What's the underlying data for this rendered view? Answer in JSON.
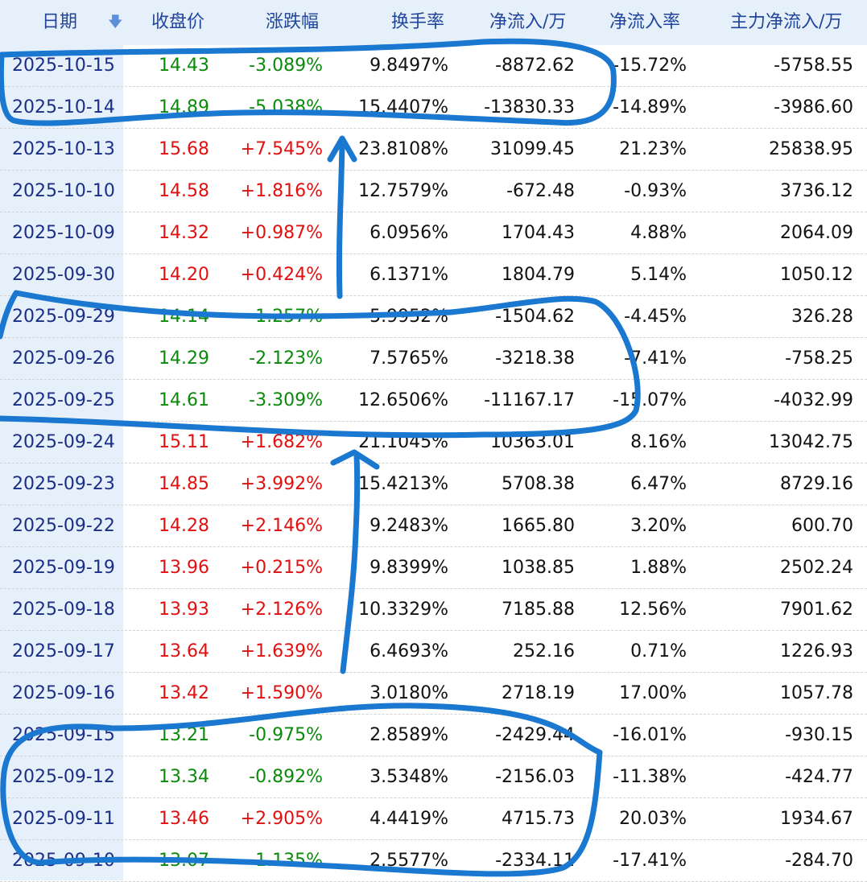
{
  "header": {
    "date": "日期",
    "close": "收盘价",
    "change": "涨跌幅",
    "turnover": "换手率",
    "net_inflow": "净流入/万",
    "net_rate": "净流入率",
    "main_inflow": "主力净流入/万",
    "sort_icon": "arrow-down-icon"
  },
  "colors": {
    "up": "#e01010",
    "down": "#0a8a0a",
    "header_bg": "#e6f0fa",
    "annotation": "#1a78d0"
  },
  "rows": [
    {
      "date": "2025-10-15",
      "close": "14.43",
      "change": "-3.089%",
      "turnover": "9.8497%",
      "net": "-8872.62",
      "rate": "-15.72%",
      "main": "-5758.55",
      "dir": "down"
    },
    {
      "date": "2025-10-14",
      "close": "14.89",
      "change": "-5.038%",
      "turnover": "15.4407%",
      "net": "-13830.33",
      "rate": "-14.89%",
      "main": "-3986.60",
      "dir": "down"
    },
    {
      "date": "2025-10-13",
      "close": "15.68",
      "change": "+7.545%",
      "turnover": "23.8108%",
      "net": "31099.45",
      "rate": "21.23%",
      "main": "25838.95",
      "dir": "up"
    },
    {
      "date": "2025-10-10",
      "close": "14.58",
      "change": "+1.816%",
      "turnover": "12.7579%",
      "net": "-672.48",
      "rate": "-0.93%",
      "main": "3736.12",
      "dir": "up"
    },
    {
      "date": "2025-10-09",
      "close": "14.32",
      "change": "+0.987%",
      "turnover": "6.0956%",
      "net": "1704.43",
      "rate": "4.88%",
      "main": "2064.09",
      "dir": "up"
    },
    {
      "date": "2025-09-30",
      "close": "14.20",
      "change": "+0.424%",
      "turnover": "6.1371%",
      "net": "1804.79",
      "rate": "5.14%",
      "main": "1050.12",
      "dir": "up"
    },
    {
      "date": "2025-09-29",
      "close": "14.14",
      "change": "-1.257%",
      "turnover": "5.9952%",
      "net": "-1504.62",
      "rate": "-4.45%",
      "main": "326.28",
      "dir": "down"
    },
    {
      "date": "2025-09-26",
      "close": "14.29",
      "change": "-2.123%",
      "turnover": "7.5765%",
      "net": "-3218.38",
      "rate": "-7.41%",
      "main": "-758.25",
      "dir": "down"
    },
    {
      "date": "2025-09-25",
      "close": "14.61",
      "change": "-3.309%",
      "turnover": "12.6506%",
      "net": "-11167.17",
      "rate": "-15.07%",
      "main": "-4032.99",
      "dir": "down"
    },
    {
      "date": "2025-09-24",
      "close": "15.11",
      "change": "+1.682%",
      "turnover": "21.1045%",
      "net": "10363.01",
      "rate": "8.16%",
      "main": "13042.75",
      "dir": "up"
    },
    {
      "date": "2025-09-23",
      "close": "14.85",
      "change": "+3.992%",
      "turnover": "15.4213%",
      "net": "5708.38",
      "rate": "6.47%",
      "main": "8729.16",
      "dir": "up"
    },
    {
      "date": "2025-09-22",
      "close": "14.28",
      "change": "+2.146%",
      "turnover": "9.2483%",
      "net": "1665.80",
      "rate": "3.20%",
      "main": "600.70",
      "dir": "up"
    },
    {
      "date": "2025-09-19",
      "close": "13.96",
      "change": "+0.215%",
      "turnover": "9.8399%",
      "net": "1038.85",
      "rate": "1.88%",
      "main": "2502.24",
      "dir": "up"
    },
    {
      "date": "2025-09-18",
      "close": "13.93",
      "change": "+2.126%",
      "turnover": "10.3329%",
      "net": "7185.88",
      "rate": "12.56%",
      "main": "7901.62",
      "dir": "up"
    },
    {
      "date": "2025-09-17",
      "close": "13.64",
      "change": "+1.639%",
      "turnover": "6.4693%",
      "net": "252.16",
      "rate": "0.71%",
      "main": "1226.93",
      "dir": "up"
    },
    {
      "date": "2025-09-16",
      "close": "13.42",
      "change": "+1.590%",
      "turnover": "3.0180%",
      "net": "2718.19",
      "rate": "17.00%",
      "main": "1057.78",
      "dir": "up"
    },
    {
      "date": "2025-09-15",
      "close": "13.21",
      "change": "-0.975%",
      "turnover": "2.8589%",
      "net": "-2429.44",
      "rate": "-16.01%",
      "main": "-930.15",
      "dir": "down"
    },
    {
      "date": "2025-09-12",
      "close": "13.34",
      "change": "-0.892%",
      "turnover": "3.5348%",
      "net": "-2156.03",
      "rate": "-11.38%",
      "main": "-424.77",
      "dir": "down"
    },
    {
      "date": "2025-09-11",
      "close": "13.46",
      "change": "+2.905%",
      "turnover": "4.4419%",
      "net": "4715.73",
      "rate": "20.03%",
      "main": "1934.67",
      "dir": "up"
    },
    {
      "date": "2025-09-10",
      "close": "13.07",
      "change": "-1.135%",
      "turnover": "2.5577%",
      "net": "-2334.11",
      "rate": "-17.41%",
      "main": "-284.70",
      "dir": "down"
    }
  ]
}
